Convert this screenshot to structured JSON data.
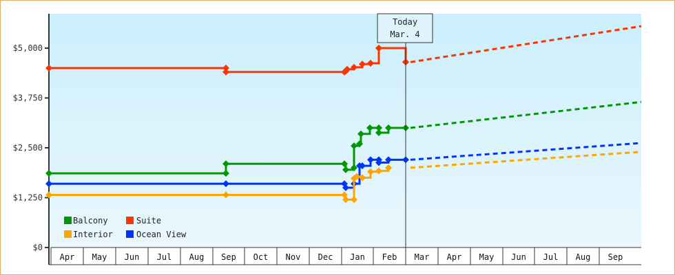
{
  "chart_data": {
    "type": "line",
    "title": "",
    "xlabel": "",
    "ylabel": "",
    "ylim": [
      0,
      5900
    ],
    "yticks": [
      {
        "value": 0,
        "label": "$0"
      },
      {
        "value": 1250,
        "label": "$1,250"
      },
      {
        "value": 2500,
        "label": "$2,500"
      },
      {
        "value": 3750,
        "label": "$3,750"
      },
      {
        "value": 5000,
        "label": "$5,000"
      }
    ],
    "x_months": [
      "Apr",
      "May",
      "Jun",
      "Jul",
      "Aug",
      "Sep",
      "Oct",
      "Nov",
      "Dec",
      "Jan",
      "Feb",
      "Mar",
      "Apr",
      "May",
      "Jun",
      "Jul",
      "Aug",
      "Sep"
    ],
    "annotation": {
      "line1": "Today",
      "line2": "Mar. 4"
    },
    "legend": [
      {
        "name": "Balcony",
        "color": "#009900"
      },
      {
        "name": "Suite",
        "color": "#ff3300"
      },
      {
        "name": "Interior",
        "color": "#ffa500"
      },
      {
        "name": "Ocean View",
        "color": "#0033ff"
      }
    ],
    "series": [
      {
        "name": "Suite",
        "color": "#ff3300",
        "points": [
          [
            "Apr",
            4500
          ],
          [
            "Sep",
            4500
          ],
          [
            "Sep",
            4400
          ],
          [
            "Dec end",
            4400
          ],
          [
            "Jan",
            4420
          ],
          [
            "Jan",
            4470
          ],
          [
            "Jan",
            4520
          ],
          [
            "Jan",
            4600
          ],
          [
            "Jan",
            4620
          ],
          [
            "Feb",
            4620
          ],
          [
            "Feb",
            5000
          ],
          [
            "Feb",
            5000
          ],
          [
            "Feb",
            4650
          ],
          [
            "Mar 4",
            4650
          ]
        ],
        "forecast": [
          [
            "Mar 4",
            4650
          ],
          [
            "Sep end",
            5550
          ]
        ]
      },
      {
        "name": "Balcony",
        "color": "#009900",
        "points": [
          [
            "Apr",
            1860
          ],
          [
            "Sep",
            1860
          ],
          [
            "Sep",
            2100
          ],
          [
            "Dec end",
            2100
          ],
          [
            "Jan",
            1950
          ],
          [
            "Jan",
            2000
          ],
          [
            "Jan",
            2550
          ],
          [
            "Jan",
            2600
          ],
          [
            "Jan",
            2850
          ],
          [
            "Feb",
            3000
          ],
          [
            "Feb",
            3000
          ],
          [
            "Feb",
            2880
          ],
          [
            "Feb",
            3000
          ],
          [
            "Mar 4",
            3000
          ]
        ],
        "forecast": [
          [
            "Mar 4",
            3000
          ],
          [
            "Sep end",
            3650
          ]
        ]
      },
      {
        "name": "Ocean View",
        "color": "#0033ff",
        "points": [
          [
            "Apr",
            1600
          ],
          [
            "Sep",
            1600
          ],
          [
            "Dec end",
            1600
          ],
          [
            "Jan",
            1500
          ],
          [
            "Jan",
            1600
          ],
          [
            "Jan",
            2050
          ],
          [
            "Jan",
            2050
          ],
          [
            "Feb",
            2200
          ],
          [
            "Feb",
            2200
          ],
          [
            "Feb",
            2130
          ],
          [
            "Feb",
            2200
          ],
          [
            "Mar 4",
            2200
          ]
        ],
        "forecast": [
          [
            "Mar 4",
            2200
          ],
          [
            "Sep end",
            2620
          ]
        ]
      },
      {
        "name": "Interior",
        "color": "#ffa500",
        "points": [
          [
            "Apr",
            1320
          ],
          [
            "Sep",
            1320
          ],
          [
            "Dec end",
            1320
          ],
          [
            "Jan",
            1200
          ],
          [
            "Jan",
            1200
          ],
          [
            "Jan",
            1730
          ],
          [
            "Jan",
            1780
          ],
          [
            "Feb",
            1750
          ],
          [
            "Feb",
            1900
          ],
          [
            "Feb",
            1920
          ],
          [
            "Mar 4",
            2000
          ]
        ],
        "forecast": [
          [
            "Mar 4",
            2000
          ],
          [
            "Sep end",
            2400
          ]
        ]
      }
    ],
    "grid": false,
    "legend_position": "lower-left inside plot"
  }
}
